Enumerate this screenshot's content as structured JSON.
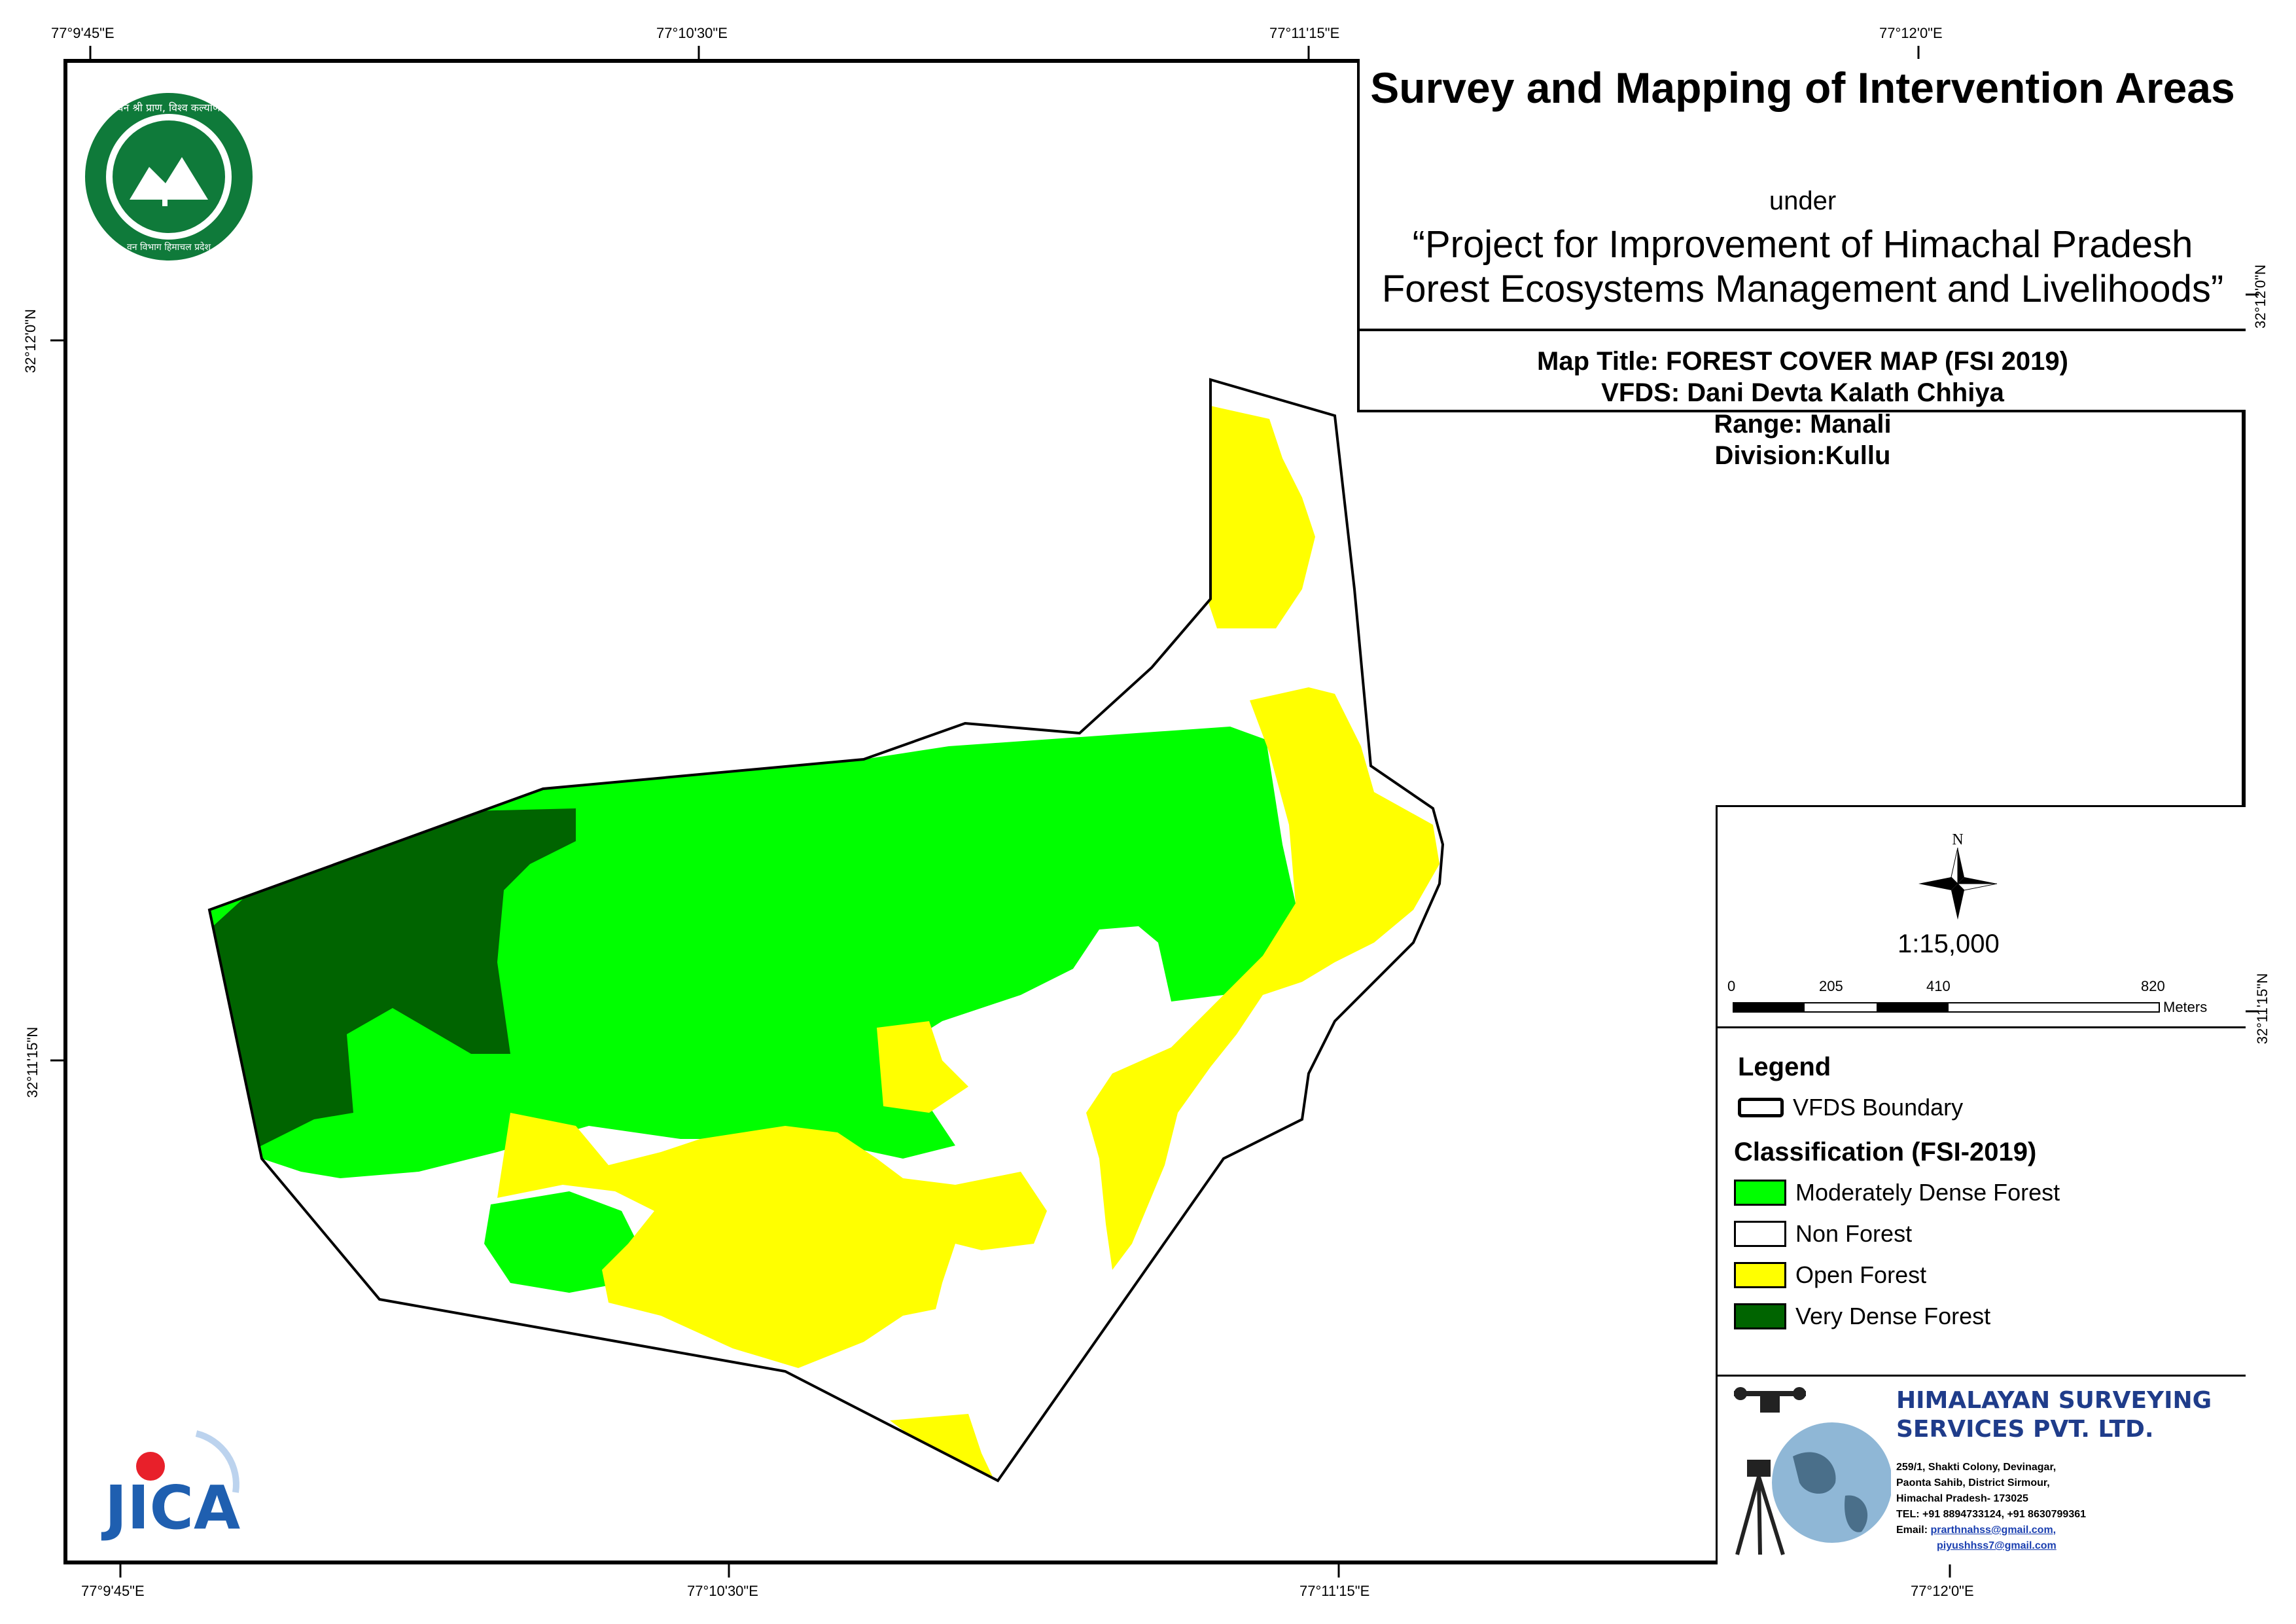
{
  "title": {
    "main": "Survey and Mapping of Intervention Areas",
    "under": "under",
    "project_line1": "“Project for Improvement of Himachal Pradesh",
    "project_line2": "Forest Ecosystems Management and Livelihoods”"
  },
  "map_info": {
    "map_title": "Map Title: FOREST COVER MAP (FSI 2019)",
    "vfds": "VFDS: Dani Devta Kalath Chhiya",
    "range": "Range: Manali",
    "division": "Division:Kullu"
  },
  "graticule": {
    "top": [
      "77°9'45\"E",
      "77°10'30\"E",
      "77°11'15\"E",
      "77°12'0\"E"
    ],
    "bottom": [
      "77°9'45\"E",
      "77°10'30\"E",
      "77°11'15\"E",
      "77°12'0\"E"
    ],
    "left": [
      "32°12'0\"N",
      "32°11'15\"N"
    ],
    "right": [
      "32°12'0\"N",
      "32°11'15\"N"
    ]
  },
  "north_arrow": {
    "label": "N",
    "icon": "compass-rose-icon"
  },
  "scale": {
    "ratio": "1:15,000",
    "ticks": [
      "0",
      "205",
      "410",
      "820"
    ],
    "unit": "Meters"
  },
  "legend": {
    "title": "Legend",
    "boundary_label": "VFDS Boundary",
    "classification_title": "Classification (FSI-2019)",
    "classes": [
      {
        "label": "Moderately Dense Forest",
        "color": "#00ff00"
      },
      {
        "label": "Non Forest",
        "color": "#ffffff"
      },
      {
        "label": "Open Forest",
        "color": "#ffff00"
      },
      {
        "label": "Very Dense Forest",
        "color": "#006400"
      }
    ]
  },
  "company": {
    "name_line1": "HIMALAYAN SURVEYING",
    "name_line2": "SERVICES PVT. LTD.",
    "address1": "259/1, Shakti Colony, Devinagar,",
    "address2": "Paonta Sahib, District Sirmour,",
    "address3": "Himachal Pradesh- 173025",
    "phone": "TEL: +91 8894733124, +91 8630799361",
    "email_label": "Email: ",
    "email1": "prarthnahss@gmail.com,",
    "email2": "piyushhss7@gmail.com"
  },
  "logos": {
    "forest_dept_top": "वन श्री प्राण, विश्व कल्याण",
    "forest_dept_bottom": "वन विभाग हिमाचल प्रदेश",
    "jica": "JICA"
  }
}
